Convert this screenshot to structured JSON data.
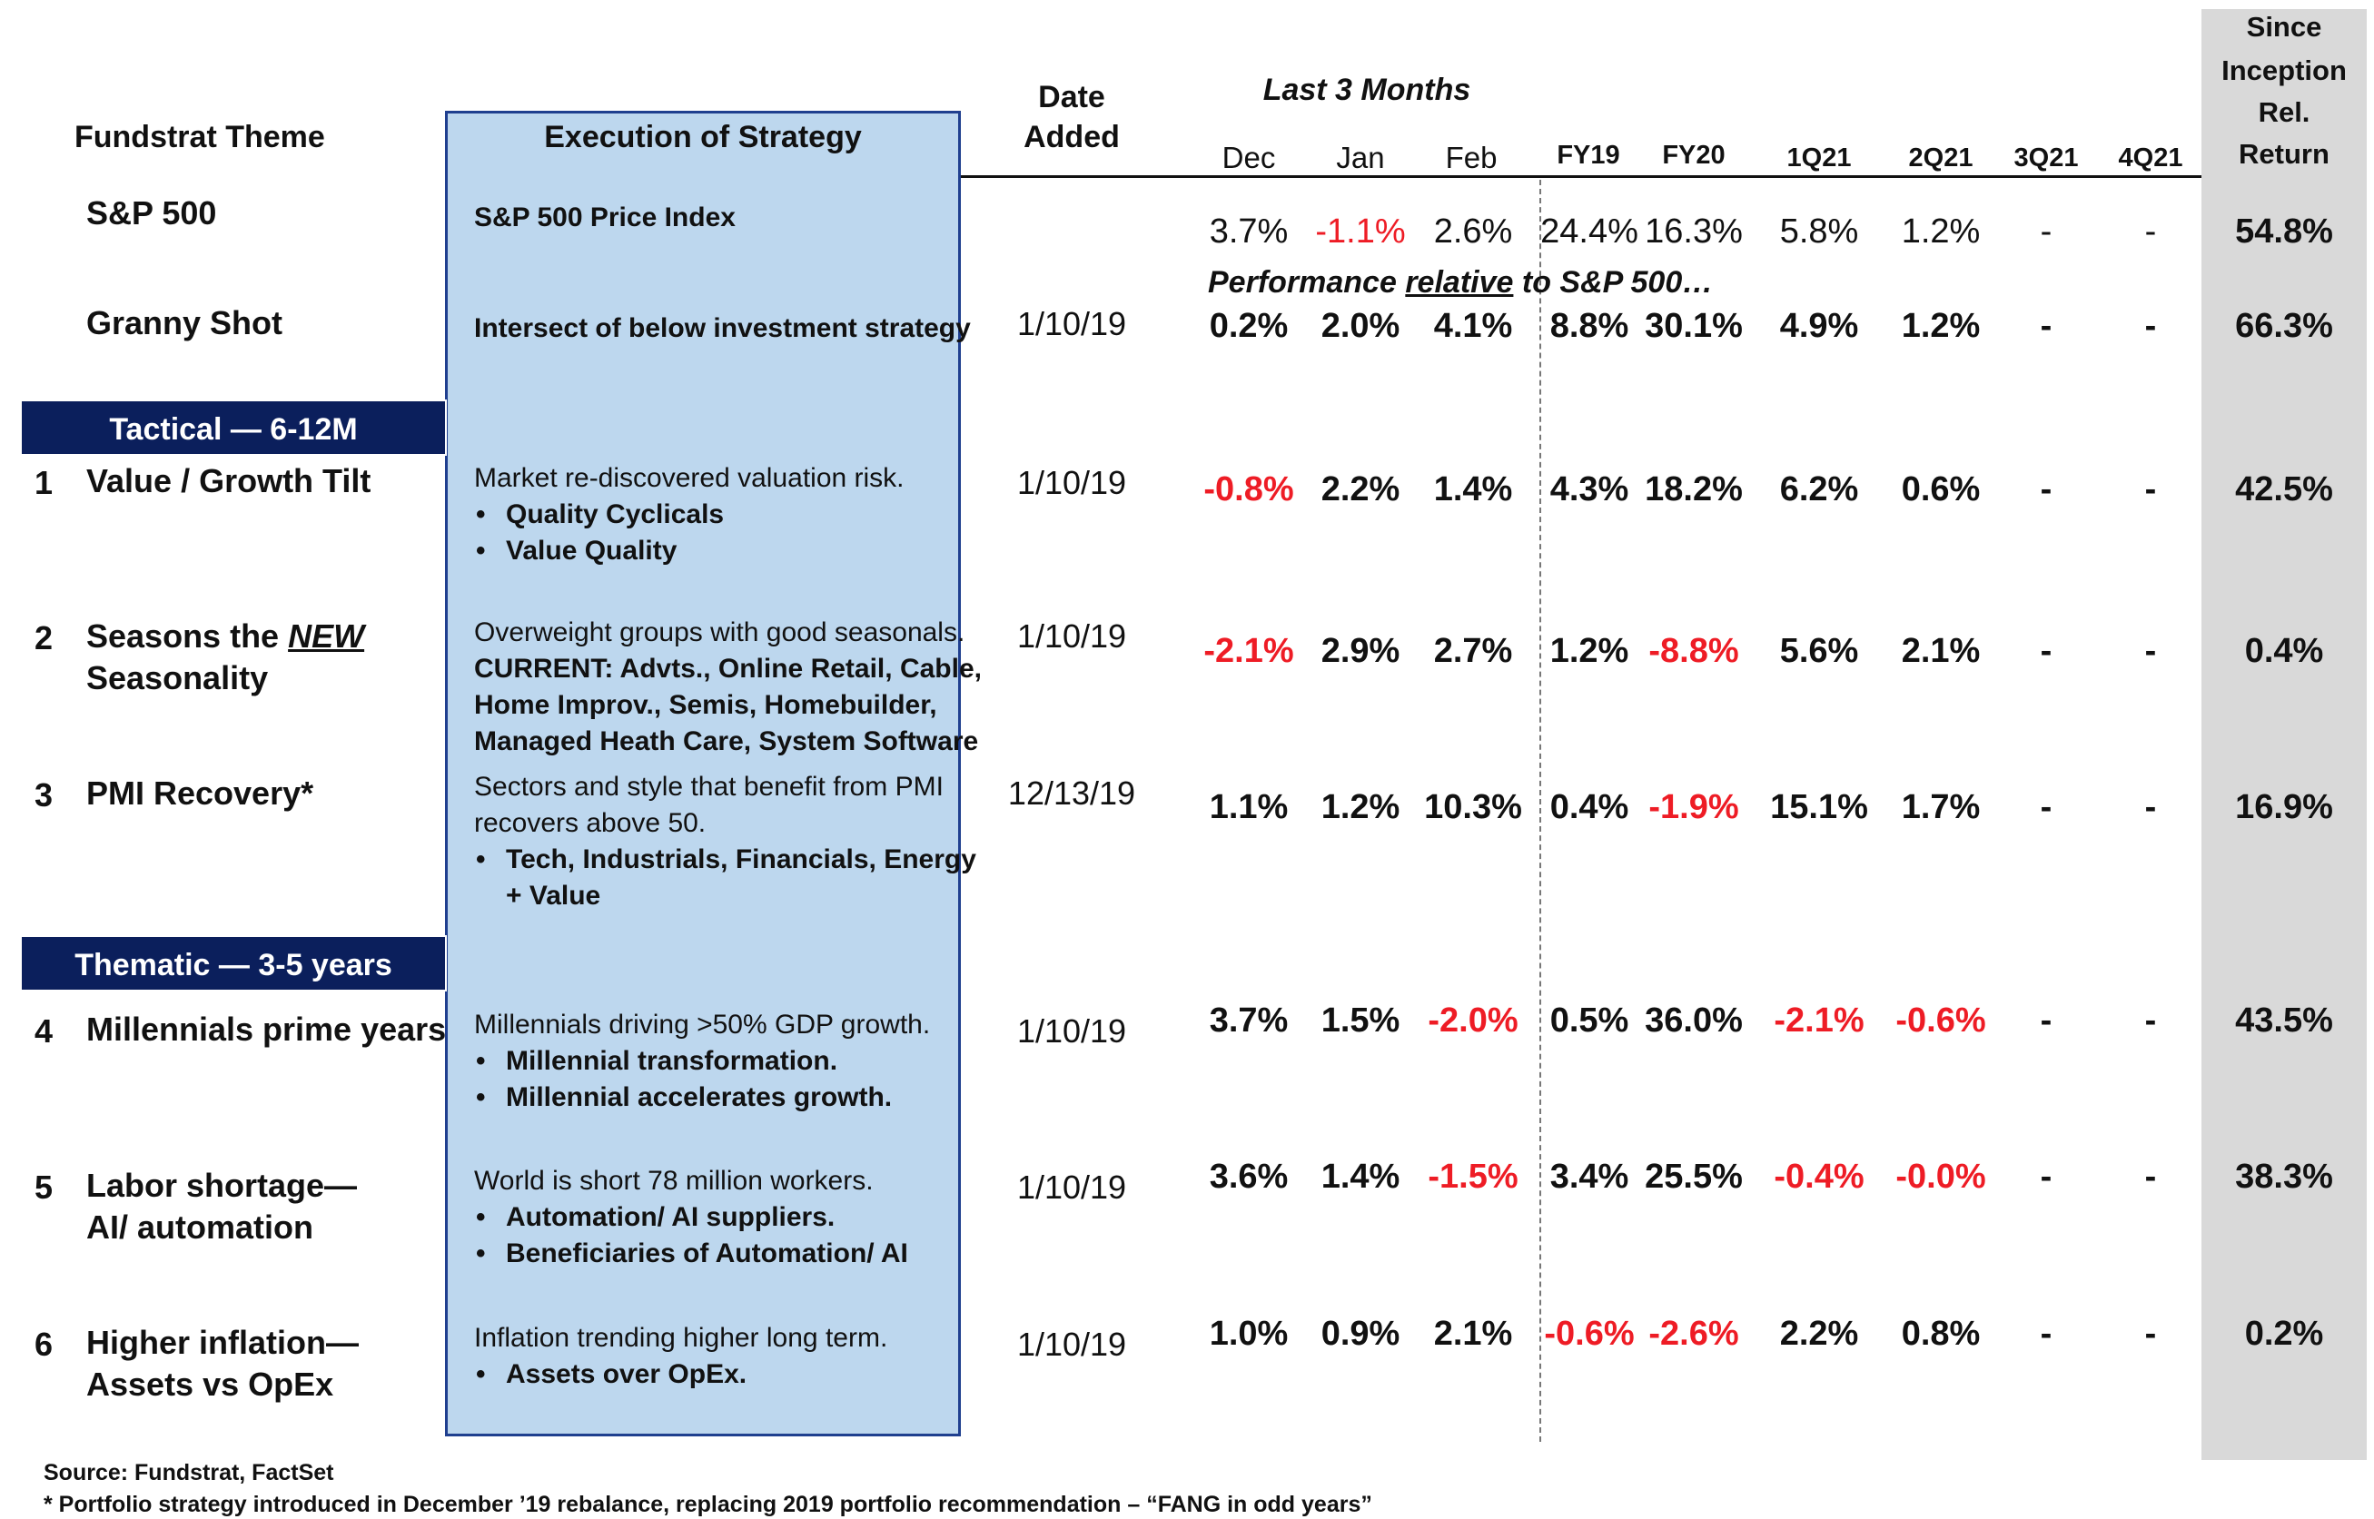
{
  "headers": {
    "fundstrat_theme": "Fundstrat Theme",
    "execution_of_strategy": "Execution of Strategy",
    "date_added": [
      "Date",
      "Added"
    ],
    "last_3_months": "Last 3 Months",
    "since_inception": [
      "Since",
      "Inception",
      "Rel.",
      "Return"
    ],
    "months": [
      "Dec",
      "Jan",
      "Feb"
    ],
    "periods": [
      "FY19",
      "FY20",
      "1Q21",
      "2Q21",
      "3Q21",
      "4Q21"
    ]
  },
  "sp500_row": {
    "theme": "S&P 500",
    "execution": "S&P 500 Price Index",
    "values": [
      "3.7%",
      "-1.1%",
      "2.6%",
      "24.4%",
      "16.3%",
      "5.8%",
      "1.2%",
      "-",
      "-"
    ],
    "since": "54.8%"
  },
  "relative_note": {
    "prefix": "Performance ",
    "underlined": "relative",
    "suffix": " to S&P 500…"
  },
  "granny_row": {
    "theme": "Granny Shot",
    "execution": "Intersect of below investment strategy",
    "date": "1/10/19",
    "values": [
      "0.2%",
      "2.0%",
      "4.1%",
      "8.8%",
      "30.1%",
      "4.9%",
      "1.2%",
      "-",
      "-"
    ],
    "since": "66.3%"
  },
  "banners": {
    "tactical": "Tactical — 6-12M",
    "thematic": "Thematic  — 3-5 years"
  },
  "rows": [
    {
      "num": "1",
      "theme_lines": [
        "Value / Growth Tilt"
      ],
      "exec_intro": [
        "Market re-discovered valuation risk."
      ],
      "bullets": [
        "Quality Cyclicals",
        "Value Quality"
      ],
      "date": "1/10/19",
      "values": [
        "-0.8%",
        "2.2%",
        "1.4%",
        "4.3%",
        "18.2%",
        "6.2%",
        "0.6%",
        "-",
        "-"
      ],
      "since": "42.5%"
    },
    {
      "num": "2",
      "theme_prefix": "Seasons the ",
      "theme_emph": "NEW",
      "theme_line2": "Seasonality",
      "exec_intro": [
        "Overweight groups with good seasonals."
      ],
      "exec_bold": [
        "CURRENT: Advts., Online Retail, Cable,",
        "Home Improv., Semis, Homebuilder,",
        "Managed Heath Care, System Software"
      ],
      "date": "1/10/19",
      "values": [
        "-2.1%",
        "2.9%",
        "2.7%",
        "1.2%",
        "-8.8%",
        "5.6%",
        "2.1%",
        "-",
        "-"
      ],
      "since": "0.4%"
    },
    {
      "num": "3",
      "theme_lines": [
        "PMI Recovery*"
      ],
      "exec_intro": [
        "Sectors and style that benefit from PMI",
        "recovers above 50."
      ],
      "bullets": [
        "Tech, Industrials, Financials, Energy",
        "+ Value"
      ],
      "date": "12/13/19",
      "values": [
        "1.1%",
        "1.2%",
        "10.3%",
        "0.4%",
        "-1.9%",
        "15.1%",
        "1.7%",
        "-",
        "-"
      ],
      "since": "16.9%"
    },
    {
      "num": "4",
      "theme_lines": [
        "Millennials prime years"
      ],
      "exec_intro": [
        "Millennials driving >50% GDP growth."
      ],
      "bullets": [
        "Millennial transformation.",
        "Millennial accelerates growth."
      ],
      "date": "1/10/19",
      "values": [
        "3.7%",
        "1.5%",
        "-2.0%",
        "0.5%",
        "36.0%",
        "-2.1%",
        "-0.6%",
        "-",
        "-"
      ],
      "since": "43.5%"
    },
    {
      "num": "5",
      "theme_lines": [
        "Labor shortage—",
        "AI/ automation"
      ],
      "exec_intro": [
        "World is short 78 million workers."
      ],
      "bullets": [
        "Automation/ AI suppliers.",
        "Beneficiaries of Automation/ AI"
      ],
      "date": "1/10/19",
      "values": [
        "3.6%",
        "1.4%",
        "-1.5%",
        "3.4%",
        "25.5%",
        "-0.4%",
        "-0.0%",
        "-",
        "-"
      ],
      "since": "38.3%"
    },
    {
      "num": "6",
      "theme_lines": [
        "Higher inflation—",
        "Assets vs OpEx"
      ],
      "exec_intro": [
        "Inflation trending higher long term."
      ],
      "bullets": [
        "Assets over OpEx."
      ],
      "date": "1/10/19",
      "values": [
        "1.0%",
        "0.9%",
        "2.1%",
        "-0.6%",
        "-2.6%",
        "2.2%",
        "0.8%",
        "-",
        "-"
      ],
      "since": "0.2%"
    }
  ],
  "footer": {
    "source": "Source: Fundstrat, FactSet",
    "note": "* Portfolio strategy introduced in December ’19 rebalance, replacing 2019 portfolio recommendation – “FANG in odd years”"
  },
  "colors": {
    "negative": "#ee1c25",
    "exec_box_fill": "#bdd7ee",
    "exec_box_border": "#1f3f8f",
    "banner_fill": "#0b1f5c",
    "since_column_fill": "#d9d9d9"
  }
}
